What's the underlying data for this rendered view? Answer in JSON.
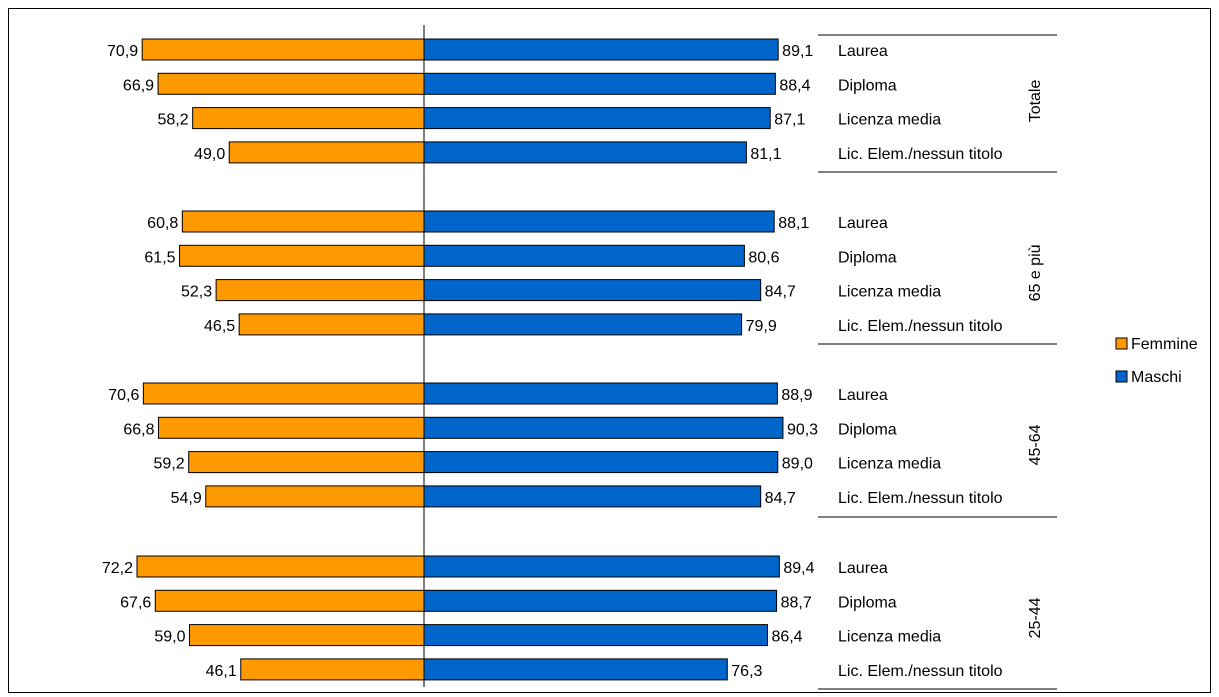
{
  "chart_data": {
    "type": "bar",
    "orientation": "horizontal",
    "layout": "diverging",
    "categories": [
      "Laurea",
      "Diploma",
      "Licenza media",
      "Lic. Elem./nessun titolo"
    ],
    "groups": [
      {
        "label": "Totale",
        "femmine": [
          70.9,
          66.9,
          58.2,
          49.0
        ],
        "maschi": [
          89.1,
          88.4,
          87.1,
          81.1
        ],
        "femmine_labels": [
          "70,9",
          "66,9",
          "58,2",
          "49,0"
        ],
        "maschi_labels": [
          "89,1",
          "88,4",
          "87,1",
          "81,1"
        ]
      },
      {
        "label": "65 e più",
        "femmine": [
          60.8,
          61.5,
          52.3,
          46.5
        ],
        "maschi": [
          88.1,
          80.6,
          84.7,
          79.9
        ],
        "femmine_labels": [
          "60,8",
          "61,5",
          "52,3",
          "46,5"
        ],
        "maschi_labels": [
          "88,1",
          "80,6",
          "84,7",
          "79,9"
        ]
      },
      {
        "label": "45-64",
        "femmine": [
          70.6,
          66.8,
          59.2,
          54.9
        ],
        "maschi": [
          88.9,
          90.3,
          89.0,
          84.7
        ],
        "femmine_labels": [
          "70,6",
          "66,8",
          "59,2",
          "54,9"
        ],
        "maschi_labels": [
          "88,9",
          "90,3",
          "89,0",
          "84,7"
        ]
      },
      {
        "label": "25-44",
        "femmine": [
          72.2,
          67.6,
          59.0,
          46.1
        ],
        "maschi": [
          89.4,
          88.7,
          86.4,
          76.3
        ],
        "femmine_labels": [
          "72,2",
          "67,6",
          "59,0",
          "46,1"
        ],
        "maschi_labels": [
          "89,4",
          "88,7",
          "86,4",
          "76,3"
        ]
      }
    ],
    "series": [
      {
        "name": "Femmine",
        "color": "#ff9900",
        "side": "left"
      },
      {
        "name": "Maschi",
        "color": "#0066cc",
        "side": "right"
      }
    ],
    "xlim": [
      0,
      100
    ],
    "grid": false,
    "legend": "right",
    "title": "",
    "xlabel": "",
    "ylabel": ""
  }
}
